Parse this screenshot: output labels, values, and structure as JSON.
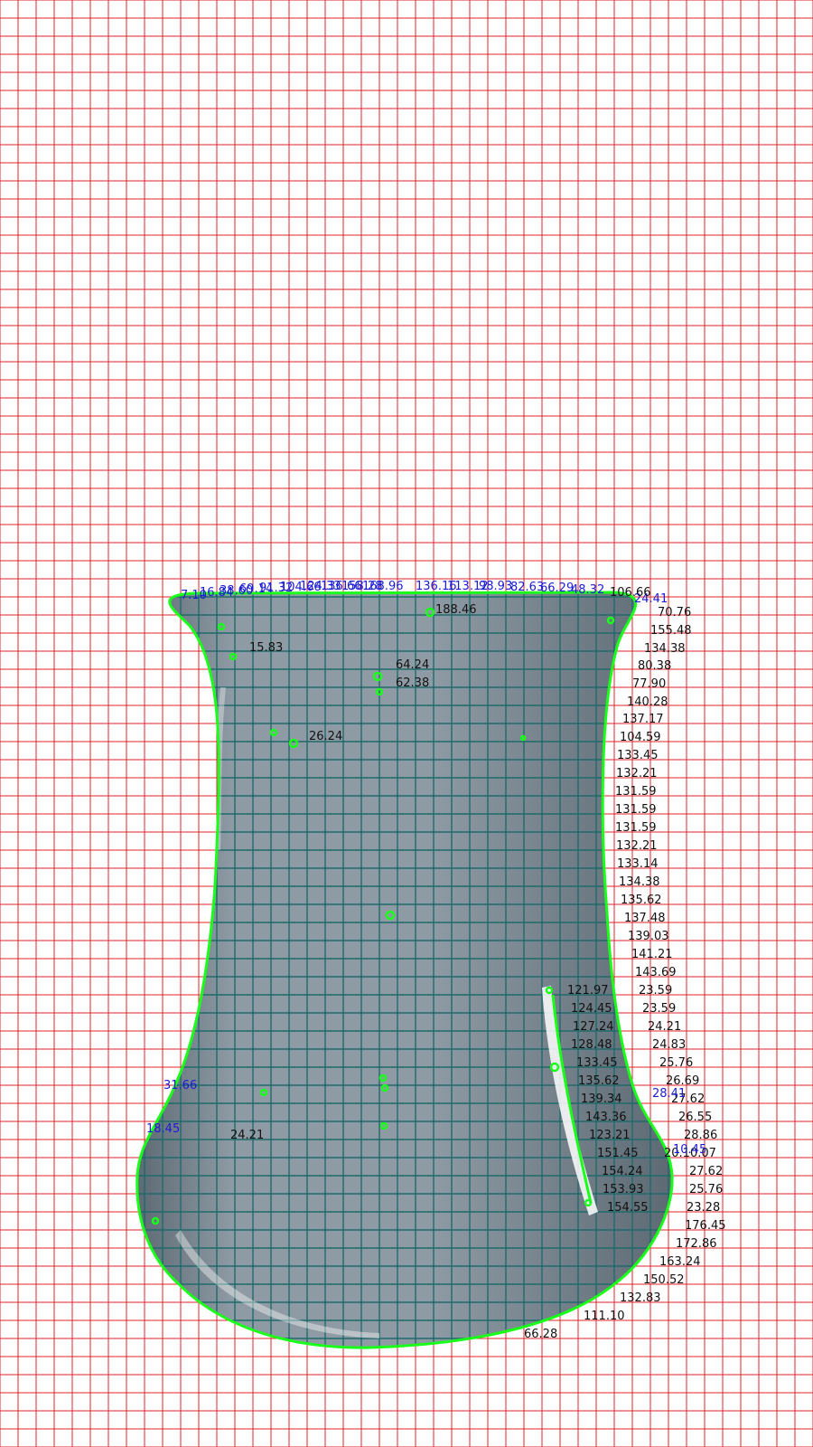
{
  "colors": {
    "background": "#ffffff",
    "grid": "#e0262b",
    "vessel_fill": "#8e9aa4",
    "vessel_shade": "#5d6a74",
    "inner_grid": "#1f6a6a",
    "contour": "#19ff19",
    "label_dark": "#111111",
    "label_blue": "#1b1bd6"
  },
  "labels_top_blue": [
    {
      "text": "7.10"
    },
    {
      "text": "16.84"
    },
    {
      "text": "38.60"
    },
    {
      "text": "69.14"
    },
    {
      "text": "91.32"
    },
    {
      "text": "104.66"
    },
    {
      "text": "124.33"
    },
    {
      "text": "136.66"
    },
    {
      "text": "158.28"
    },
    {
      "text": "168.96"
    },
    {
      "text": "136.16"
    },
    {
      "text": "113.12"
    },
    {
      "text": "98.93"
    },
    {
      "text": "82.63"
    },
    {
      "text": "66.29"
    },
    {
      "text": "48.32"
    },
    {
      "text": "24.41"
    }
  ],
  "labels_top_right": [
    {
      "text": "106.66"
    }
  ],
  "labels_inner": [
    {
      "text": "188.46"
    },
    {
      "text": "15.83"
    },
    {
      "text": "64.24"
    },
    {
      "text": "62.38"
    },
    {
      "text": "26.24"
    },
    {
      "text": "24.21"
    }
  ],
  "labels_right_column": [
    {
      "text": "70.76"
    },
    {
      "text": "155.48"
    },
    {
      "text": "134.38"
    },
    {
      "text": "80.38"
    },
    {
      "text": "77.90"
    },
    {
      "text": "140.28"
    },
    {
      "text": "137.17"
    },
    {
      "text": "104.59"
    },
    {
      "text": "133.45"
    },
    {
      "text": "132.21"
    },
    {
      "text": "131.59"
    },
    {
      "text": "131.59"
    },
    {
      "text": "131.59"
    },
    {
      "text": "132.21"
    },
    {
      "text": "133.14"
    },
    {
      "text": "134.38"
    },
    {
      "text": "135.62"
    },
    {
      "text": "137.48"
    },
    {
      "text": "139.03"
    },
    {
      "text": "141.21"
    },
    {
      "text": "143.69"
    }
  ],
  "labels_right_pairs": [
    {
      "a": "121.97",
      "b": "23.59"
    },
    {
      "a": "124.45",
      "b": "23.59"
    },
    {
      "a": "127.24",
      "b": "24.21"
    },
    {
      "a": "128.48",
      "b": "24.83"
    },
    {
      "a": "133.45",
      "b": "25.76"
    },
    {
      "a": "135.62",
      "b": "26.69"
    },
    {
      "a": "139.34",
      "b": "27.62"
    },
    {
      "a": "143.36",
      "b": "26.55"
    },
    {
      "a": "123.21",
      "b": "28.86"
    },
    {
      "a": "151.45",
      "b": "20.10.07"
    },
    {
      "a": "154.24",
      "b": "27.62"
    },
    {
      "a": "153.93",
      "b": "25.76"
    },
    {
      "a": "154.55",
      "b": "23.28"
    }
  ],
  "labels_right_bottom": [
    {
      "text": "176.45"
    },
    {
      "text": "172.86"
    },
    {
      "text": "163.24"
    },
    {
      "text": "150.52"
    },
    {
      "text": "132.83"
    },
    {
      "text": "111.10"
    },
    {
      "text": "66.28"
    }
  ],
  "labels_blue_side": [
    {
      "text": "31.66"
    },
    {
      "text": "18.45"
    },
    {
      "text": "28.41"
    },
    {
      "text": "10.45"
    }
  ]
}
